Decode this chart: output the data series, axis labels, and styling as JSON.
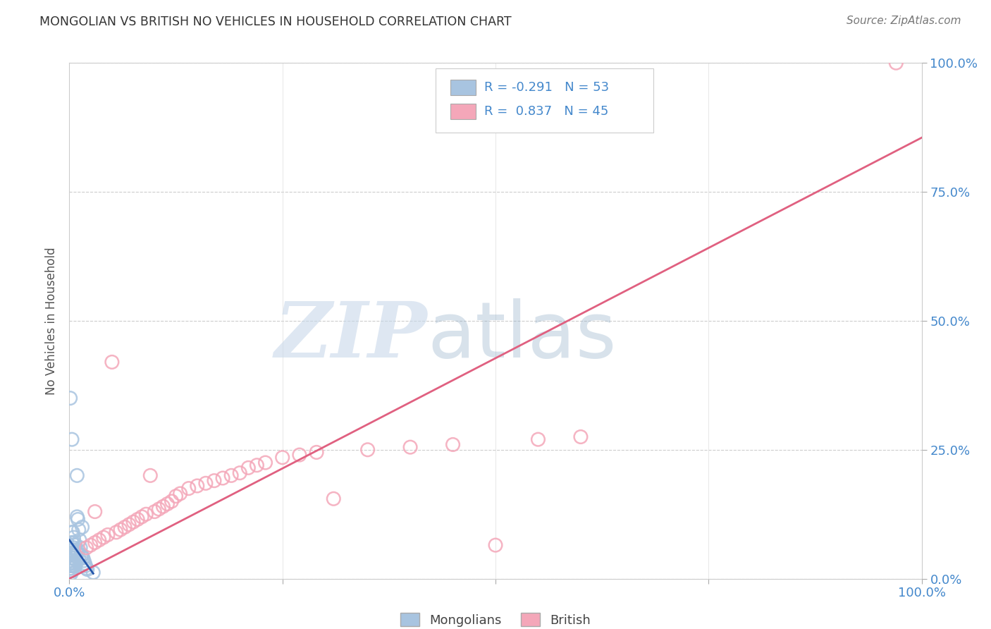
{
  "title": "MONGOLIAN VS BRITISH NO VEHICLES IN HOUSEHOLD CORRELATION CHART",
  "source": "Source: ZipAtlas.com",
  "ylabel": "No Vehicles in Household",
  "xlim": [
    0.0,
    1.0
  ],
  "ylim": [
    0.0,
    1.0
  ],
  "xticks": [
    0.0,
    0.25,
    0.5,
    0.75,
    1.0
  ],
  "yticks": [
    0.0,
    0.25,
    0.5,
    0.75,
    1.0
  ],
  "xticklabels": [
    "0.0%",
    "",
    "",
    "",
    "100.0%"
  ],
  "yticklabels_right": [
    "0.0%",
    "25.0%",
    "50.0%",
    "75.0%",
    "100.0%"
  ],
  "mongolian_color": "#a8c4e0",
  "british_color": "#f4a7b9",
  "mongolian_line_color": "#2255aa",
  "british_line_color": "#e06080",
  "watermark_zip_color": "#c8d8ea",
  "watermark_atlas_color": "#90aec8",
  "legend_label_mongolians": "Mongolians",
  "legend_label_british": "British",
  "background_color": "#ffffff",
  "grid_color": "#cccccc",
  "tick_color": "#4488cc",
  "title_color": "#333333",
  "source_color": "#777777",
  "mongolian_x": [
    0.001,
    0.001,
    0.001,
    0.001,
    0.002,
    0.002,
    0.002,
    0.002,
    0.002,
    0.003,
    0.003,
    0.003,
    0.003,
    0.003,
    0.003,
    0.003,
    0.004,
    0.004,
    0.004,
    0.004,
    0.004,
    0.005,
    0.005,
    0.005,
    0.005,
    0.006,
    0.006,
    0.006,
    0.007,
    0.007,
    0.007,
    0.008,
    0.008,
    0.009,
    0.009,
    0.009,
    0.01,
    0.01,
    0.011,
    0.011,
    0.012,
    0.013,
    0.014,
    0.015,
    0.015,
    0.016,
    0.017,
    0.018,
    0.019,
    0.02,
    0.021,
    0.028,
    0.001
  ],
  "mongolian_y": [
    0.035,
    0.03,
    0.025,
    0.02,
    0.03,
    0.025,
    0.02,
    0.015,
    0.01,
    0.27,
    0.09,
    0.07,
    0.05,
    0.035,
    0.025,
    0.015,
    0.09,
    0.07,
    0.055,
    0.04,
    0.025,
    0.08,
    0.06,
    0.04,
    0.025,
    0.07,
    0.05,
    0.03,
    0.065,
    0.045,
    0.025,
    0.055,
    0.035,
    0.2,
    0.12,
    0.05,
    0.115,
    0.055,
    0.095,
    0.04,
    0.075,
    0.06,
    0.045,
    0.1,
    0.045,
    0.04,
    0.035,
    0.03,
    0.025,
    0.02,
    0.018,
    0.012,
    0.35
  ],
  "british_x": [
    0.02,
    0.025,
    0.03,
    0.035,
    0.04,
    0.045,
    0.05,
    0.055,
    0.06,
    0.065,
    0.07,
    0.075,
    0.08,
    0.085,
    0.09,
    0.095,
    0.1,
    0.105,
    0.11,
    0.115,
    0.12,
    0.125,
    0.13,
    0.14,
    0.15,
    0.16,
    0.17,
    0.18,
    0.19,
    0.2,
    0.21,
    0.22,
    0.23,
    0.25,
    0.27,
    0.29,
    0.31,
    0.35,
    0.4,
    0.45,
    0.5,
    0.55,
    0.6,
    0.97,
    0.03
  ],
  "british_y": [
    0.06,
    0.065,
    0.07,
    0.075,
    0.08,
    0.085,
    0.42,
    0.09,
    0.095,
    0.1,
    0.105,
    0.11,
    0.115,
    0.12,
    0.125,
    0.2,
    0.13,
    0.135,
    0.14,
    0.145,
    0.15,
    0.16,
    0.165,
    0.175,
    0.18,
    0.185,
    0.19,
    0.195,
    0.2,
    0.205,
    0.215,
    0.22,
    0.225,
    0.235,
    0.24,
    0.245,
    0.155,
    0.25,
    0.255,
    0.26,
    0.065,
    0.27,
    0.275,
    1.0,
    0.13
  ],
  "british_line_x0": 0.0,
  "british_line_y0": 0.0,
  "british_line_x1": 1.0,
  "british_line_y1": 0.855,
  "mongolian_line_x0": 0.0,
  "mongolian_line_y0": 0.075,
  "mongolian_line_x1": 0.028,
  "mongolian_line_y1": 0.01
}
